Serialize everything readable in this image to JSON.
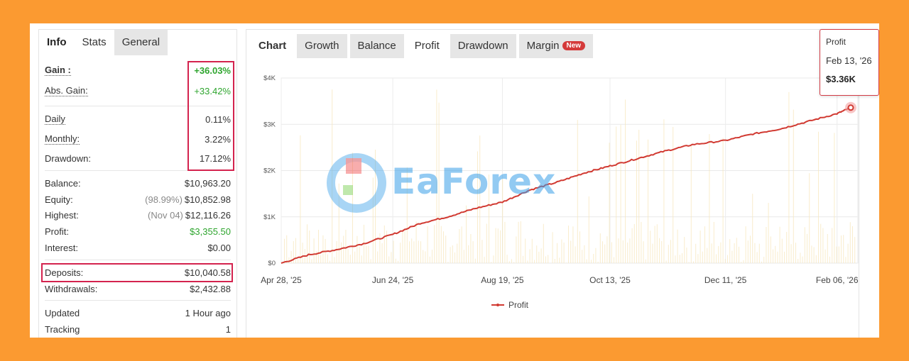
{
  "left_tabs": [
    {
      "label": "Info"
    },
    {
      "label": "Stats"
    },
    {
      "label": "General"
    }
  ],
  "stats": {
    "gain": {
      "label": "Gain :",
      "value": "+36.03%"
    },
    "abs_gain": {
      "label": "Abs. Gain:",
      "value": "+33.42%"
    },
    "daily": {
      "label": "Daily",
      "value": "0.11%"
    },
    "monthly": {
      "label": "Monthly:",
      "value": "3.22%"
    },
    "drawdown": {
      "label": "Drawdown:",
      "value": "17.12%"
    },
    "balance": {
      "label": "Balance:",
      "value": "$10,963.20"
    },
    "equity": {
      "label": "Equity:",
      "note": "(98.99%)",
      "value": "$10,852.98"
    },
    "highest": {
      "label": "Highest:",
      "note": "(Nov 04)",
      "value": "$12,116.26"
    },
    "profit": {
      "label": "Profit:",
      "value": "$3,355.50"
    },
    "interest": {
      "label": "Interest:",
      "value": "$0.00"
    },
    "deposits": {
      "label": "Deposits:",
      "value": "$10,040.58"
    },
    "withdrawals": {
      "label": "Withdrawals:",
      "value": "$2,432.88"
    },
    "updated": {
      "label": "Updated",
      "value": "1 Hour ago"
    },
    "tracking": {
      "label": "Tracking",
      "value": "1"
    }
  },
  "right_tabs": [
    {
      "label": "Chart"
    },
    {
      "label": "Growth"
    },
    {
      "label": "Balance"
    },
    {
      "label": "Profit"
    },
    {
      "label": "Drawdown"
    },
    {
      "label": "Margin",
      "badge": "New"
    }
  ],
  "tooltip": {
    "series": "Profit",
    "date": "Feb 13, '26",
    "value": "$3.36K"
  },
  "watermark": {
    "text": "EaForex"
  },
  "colors": {
    "frame": "#fb9a31",
    "line": "#d13a32",
    "gain_green": "#2ea52e",
    "highlight_box": "#d4234e",
    "volume_bars": "#f7e6b8"
  },
  "chart_data": {
    "type": "line",
    "x_tick_labels": [
      "Apr 28, '25",
      "Jun 24, '25",
      "Aug 19, '25",
      "Oct 13, '25",
      "Dec 11, '25",
      "Feb 06, '26"
    ],
    "y_tick_labels": [
      "$0",
      "$1K",
      "$2K",
      "$3K",
      "$4K"
    ],
    "ylim": [
      0,
      4000
    ],
    "grid": true,
    "legend_position": "bottom-center",
    "series": [
      {
        "name": "Profit",
        "x": [
          "2025-04-28",
          "2025-05-12",
          "2025-05-26",
          "2025-06-09",
          "2025-06-24",
          "2025-07-08",
          "2025-07-22",
          "2025-08-05",
          "2025-08-19",
          "2025-09-02",
          "2025-09-16",
          "2025-09-30",
          "2025-10-13",
          "2025-10-27",
          "2025-11-10",
          "2025-11-24",
          "2025-12-11",
          "2025-12-25",
          "2026-01-08",
          "2026-01-22",
          "2026-02-06",
          "2026-02-13"
        ],
        "values": [
          0,
          180,
          290,
          420,
          620,
          860,
          1000,
          1180,
          1320,
          1580,
          1750,
          1950,
          2100,
          2260,
          2420,
          2560,
          2650,
          2790,
          2900,
          3060,
          3230,
          3360
        ]
      }
    ]
  }
}
